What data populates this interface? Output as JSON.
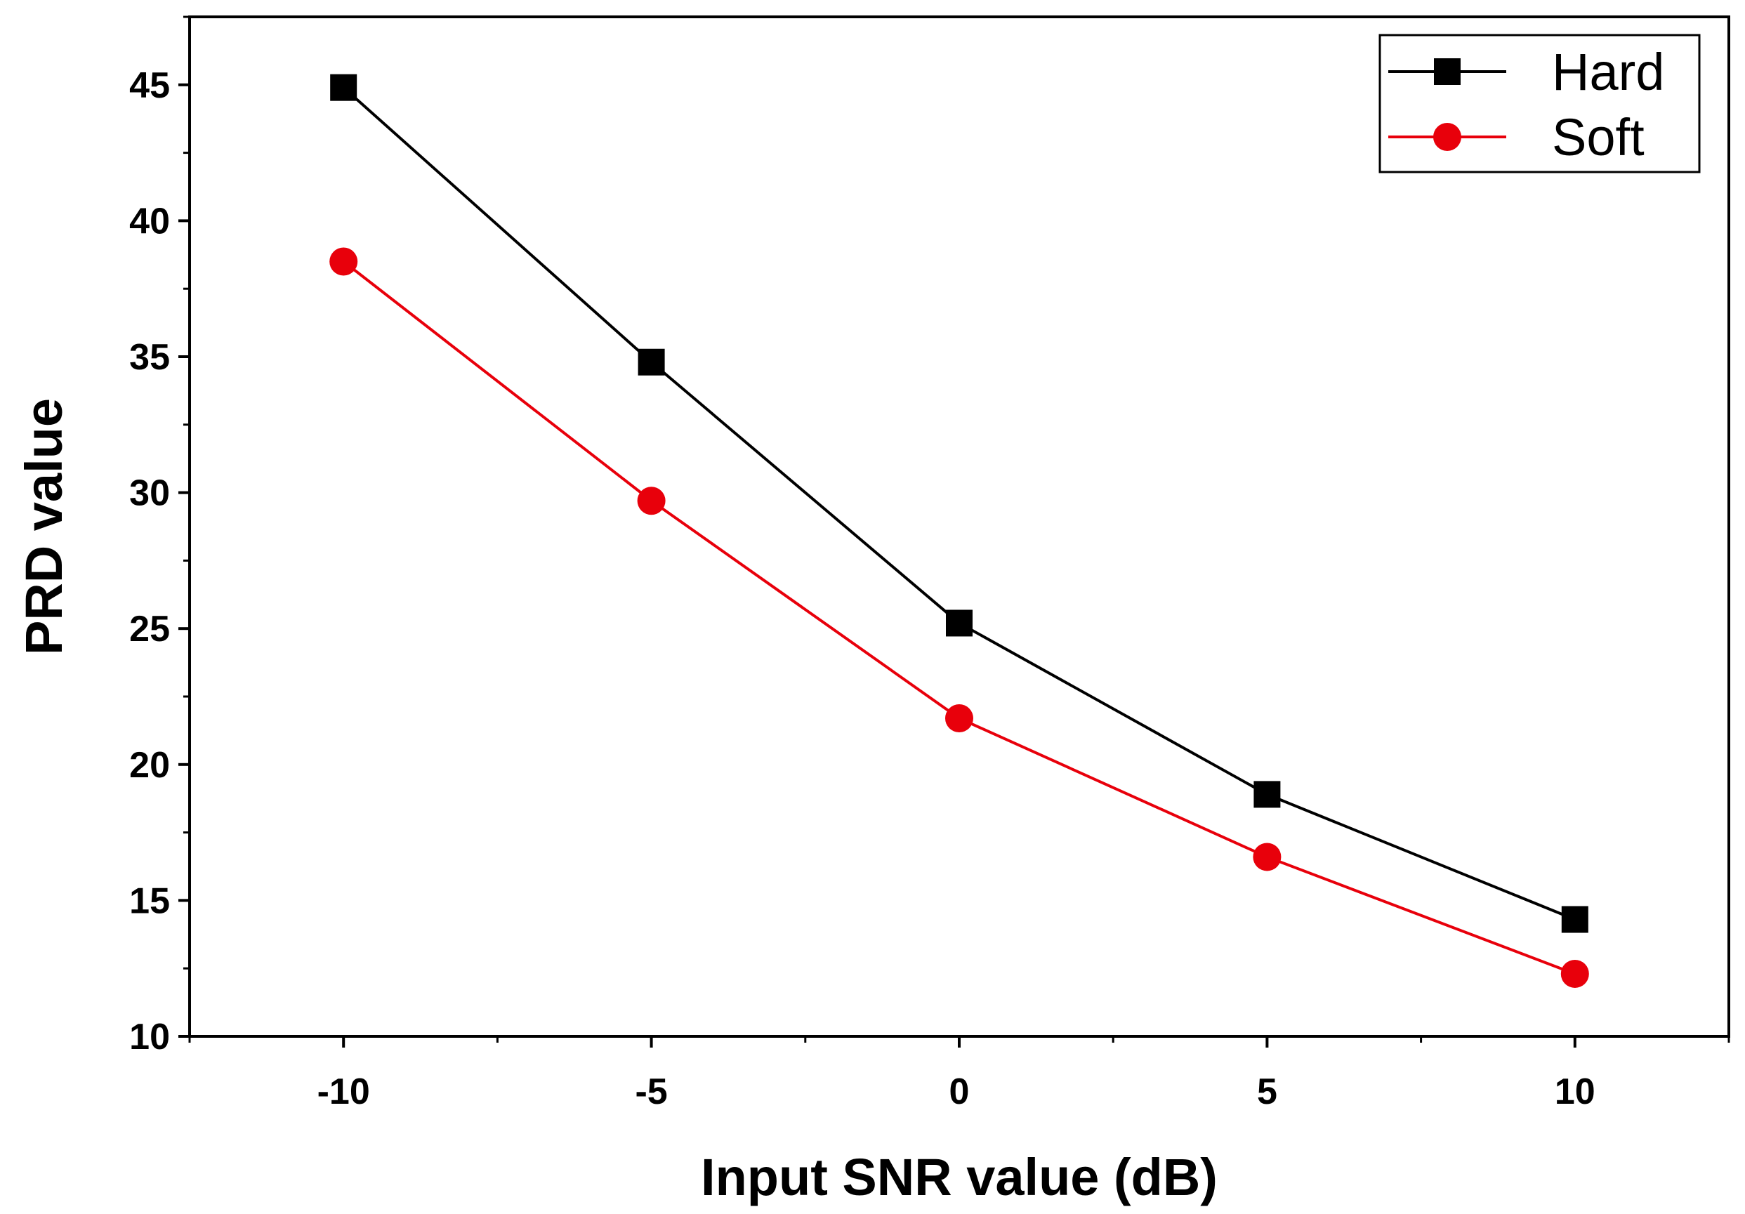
{
  "chart_data": {
    "type": "line",
    "title": "",
    "xlabel": "Input SNR value (dB)",
    "ylabel": "PRD value",
    "xlim": [
      -12.5,
      12.5
    ],
    "ylim": [
      10,
      47.5
    ],
    "x_ticks": [
      -10,
      -5,
      0,
      5,
      10
    ],
    "y_ticks": [
      10,
      15,
      20,
      25,
      30,
      35,
      40,
      45
    ],
    "grid": false,
    "legend_position": "top-right",
    "series": [
      {
        "name": "Hard",
        "color": "#000000",
        "marker": "square",
        "x": [
          -10,
          -5,
          0,
          5,
          10
        ],
        "values": [
          44.9,
          34.8,
          25.2,
          18.9,
          14.3
        ]
      },
      {
        "name": "Soft",
        "color": "#e8000b",
        "marker": "circle",
        "x": [
          -10,
          -5,
          0,
          5,
          10
        ],
        "values": [
          38.5,
          29.7,
          21.7,
          16.6,
          12.3
        ]
      }
    ]
  }
}
